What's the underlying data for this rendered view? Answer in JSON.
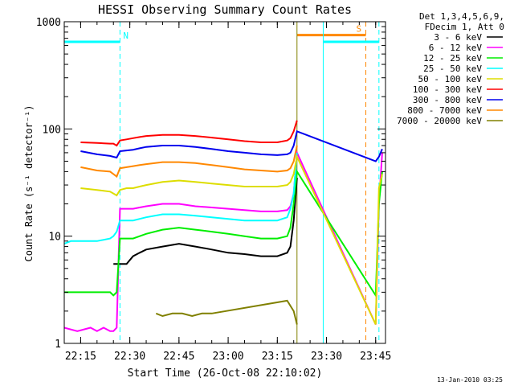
{
  "chart_data": {
    "type": "line",
    "title": "HESSI Observing Summary Count Rates",
    "xlabel": "Start Time (26-Oct-08 22:10:02)",
    "ylabel": "Count Rate (s⁻¹ detector⁻¹)",
    "yscale": "log",
    "xlim": [
      "22:10",
      "23:48"
    ],
    "ylim": [
      1,
      1000
    ],
    "x_ticks": [
      "22:15",
      "22:30",
      "22:45",
      "23:00",
      "23:15",
      "23:30",
      "23:45"
    ],
    "y_ticks": [
      "1",
      "10",
      "100",
      "1000"
    ],
    "legend_header": [
      "Det 1,3,4,5,6,9,",
      "FDecim 1, Att 0"
    ],
    "legend_position": "right",
    "series": [
      {
        "name": "3 - 6 keV",
        "color": "#000000",
        "x": [
          "22:25",
          "22:27",
          "22:29",
          "22:31",
          "22:33",
          "22:35",
          "22:40",
          "22:45",
          "22:50",
          "22:55",
          "23:00",
          "23:05",
          "23:10",
          "23:15",
          "23:18",
          "23:19",
          "23:20",
          "23:21"
        ],
        "y": [
          5.5,
          5.5,
          5.5,
          6.5,
          7.0,
          7.5,
          8.0,
          8.5,
          8.0,
          7.5,
          7.0,
          6.8,
          6.5,
          6.5,
          7.0,
          8.0,
          14,
          35
        ]
      },
      {
        "name": "6 - 12 keV",
        "color": "#ff00ff",
        "x": [
          "22:10",
          "22:14",
          "22:18",
          "22:20",
          "22:22",
          "22:24",
          "22:25",
          "22:26",
          "22:27",
          "22:29",
          "22:31",
          "22:33",
          "22:35",
          "22:40",
          "22:45",
          "22:50",
          "22:55",
          "23:00",
          "23:05",
          "23:10",
          "23:15",
          "23:18",
          "23:19",
          "23:20",
          "23:21",
          "23:45",
          "23:46",
          "23:47"
        ],
        "y": [
          1.4,
          1.3,
          1.4,
          1.3,
          1.4,
          1.3,
          1.3,
          1.4,
          18,
          18,
          18,
          18.5,
          19,
          20,
          20,
          19,
          18.5,
          18,
          17.5,
          17,
          17,
          17.5,
          19,
          25,
          60,
          1.5,
          20,
          60
        ]
      },
      {
        "name": "12 - 25 keV",
        "color": "#00ee00",
        "x": [
          "22:10",
          "22:15",
          "22:20",
          "22:24",
          "22:25",
          "22:26",
          "22:27",
          "22:29",
          "22:31",
          "22:33",
          "22:35",
          "22:40",
          "22:45",
          "22:50",
          "22:55",
          "23:00",
          "23:05",
          "23:10",
          "23:15",
          "23:18",
          "23:19",
          "23:20",
          "23:21",
          "23:45",
          "23:46",
          "23:47"
        ],
        "y": [
          3.0,
          3.0,
          3.0,
          3.0,
          2.8,
          3.0,
          9.5,
          9.5,
          9.5,
          10,
          10.5,
          11.5,
          12,
          11.5,
          11,
          10.5,
          10,
          9.5,
          9.5,
          10,
          12,
          20,
          40,
          2.8,
          20,
          40
        ]
      },
      {
        "name": "25 - 50 keV",
        "color": "#00ffff",
        "x": [
          "22:10",
          "22:12",
          "22:15",
          "22:20",
          "22:24",
          "22:25",
          "22:26",
          "22:27",
          "22:29",
          "22:31",
          "22:33",
          "22:35",
          "22:40",
          "22:45",
          "22:50",
          "22:55",
          "23:00",
          "23:05",
          "23:10",
          "23:15",
          "23:18",
          "23:19",
          "23:20",
          "23:21"
        ],
        "y": [
          8.5,
          9.0,
          9.0,
          9.0,
          9.5,
          10,
          11,
          14,
          14,
          14,
          14.5,
          15,
          16,
          16,
          15.5,
          15,
          14.5,
          14,
          14,
          14,
          15,
          18,
          25,
          60
        ]
      },
      {
        "name": "50 - 100 keV",
        "color": "#dddd00",
        "x": [
          "22:15",
          "22:20",
          "22:24",
          "22:25",
          "22:26",
          "22:27",
          "22:29",
          "22:31",
          "22:33",
          "22:35",
          "22:40",
          "22:45",
          "22:50",
          "22:55",
          "23:00",
          "23:05",
          "23:10",
          "23:15",
          "23:18",
          "23:19",
          "23:20",
          "23:21",
          "23:45",
          "23:46",
          "23:47"
        ],
        "y": [
          28,
          27,
          26,
          25,
          24,
          27,
          28,
          28,
          29,
          30,
          32,
          33,
          32,
          31,
          30,
          29,
          29,
          29,
          30,
          32,
          38,
          55,
          1.5,
          28,
          38
        ]
      },
      {
        "name": "100 - 300 keV",
        "color": "#ff0000",
        "x": [
          "22:15",
          "22:20",
          "22:24",
          "22:25",
          "22:26",
          "22:27",
          "22:29",
          "22:31",
          "22:33",
          "22:35",
          "22:40",
          "22:45",
          "22:50",
          "22:55",
          "23:00",
          "23:05",
          "23:10",
          "23:15",
          "23:18",
          "23:19",
          "23:20",
          "23:21"
        ],
        "y": [
          75,
          74,
          73,
          73,
          70,
          78,
          80,
          82,
          84,
          86,
          88,
          88,
          86,
          83,
          80,
          77,
          75,
          75,
          78,
          82,
          95,
          120
        ]
      },
      {
        "name": "300 - 800 keV",
        "color": "#0000ee",
        "x": [
          "22:15",
          "22:20",
          "22:24",
          "22:25",
          "22:26",
          "22:27",
          "22:29",
          "22:31",
          "22:33",
          "22:35",
          "22:40",
          "22:45",
          "22:50",
          "22:55",
          "23:00",
          "23:05",
          "23:10",
          "23:15",
          "23:18",
          "23:19",
          "23:20",
          "23:21",
          "23:45",
          "23:46",
          "23:47"
        ],
        "y": [
          62,
          58,
          56,
          55,
          54,
          62,
          63,
          64,
          66,
          68,
          70,
          70,
          68,
          65,
          62,
          60,
          58,
          57,
          58,
          60,
          70,
          95,
          50,
          55,
          65
        ]
      },
      {
        "name": "800 - 7000 keV",
        "color": "#ff8800",
        "x": [
          "22:15",
          "22:20",
          "22:24",
          "22:25",
          "22:26",
          "22:27",
          "22:29",
          "22:31",
          "22:33",
          "22:35",
          "22:40",
          "22:45",
          "22:50",
          "22:55",
          "23:00",
          "23:05",
          "23:10",
          "23:15",
          "23:18",
          "23:19",
          "23:20",
          "23:21"
        ],
        "y": [
          44,
          41,
          40,
          38,
          36,
          43,
          44,
          45,
          46,
          47,
          49,
          49,
          48,
          46,
          44,
          42,
          41,
          40,
          41,
          43,
          50,
          70
        ]
      },
      {
        "name": "7000 - 20000 keV",
        "color": "#808000",
        "x": [
          "22:38",
          "22:40",
          "22:43",
          "22:46",
          "22:49",
          "22:52",
          "22:55",
          "23:18",
          "23:20",
          "23:21"
        ],
        "y": [
          1.9,
          1.8,
          1.9,
          1.9,
          1.8,
          1.9,
          1.9,
          2.5,
          2.0,
          1.5
        ]
      }
    ],
    "flag_lines": [
      {
        "label": "N",
        "color": "#00ffff",
        "dashed_x": "22:27",
        "level": 650,
        "bar_from": "22:10",
        "bar_to": "22:27"
      },
      {
        "label": "S",
        "color": "#ff8800",
        "level": 750,
        "bar_from": "23:21",
        "bar_to": "23:42",
        "dashed_x": "23:42"
      },
      {
        "label": "",
        "color": "#00ffff",
        "level": 650,
        "bar_from": "23:29",
        "bar_to": "23:46",
        "dashed_x": "23:46",
        "solid_x": "23:29"
      },
      {
        "label": "",
        "color": "#808000",
        "solid_x": "23:21"
      }
    ],
    "footer_date": "13-Jan-2010 03:25"
  }
}
